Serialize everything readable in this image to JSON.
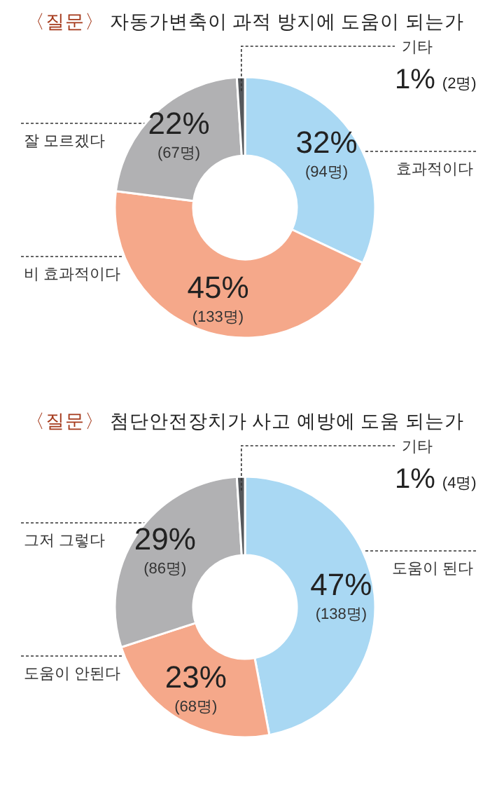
{
  "chart_data": [
    {
      "type": "donut",
      "title": "〈질문〉 자동가변축이 과적 방지에 도움이 되는가",
      "categories": [
        "효과적이다",
        "비 효과적이다",
        "잘 모르겠다",
        "기타"
      ],
      "values": [
        32,
        45,
        22,
        1
      ],
      "value_labels": [
        "32% (94명)",
        "45% (133명)",
        "22% (67명)",
        "1% (2명)"
      ],
      "colors": [
        "#a9d8f3",
        "#f5a88a",
        "#b1b1b3",
        "#55585c"
      ]
    },
    {
      "type": "donut",
      "title": "〈질문〉 첨단안전장치가 사고 예방에 도움 되는가",
      "categories": [
        "도움이 된다",
        "도움이 안된다",
        "그저 그렇다",
        "기타"
      ],
      "values": [
        47,
        23,
        29,
        1
      ],
      "value_labels": [
        "47% (138명)",
        "23% (68명)",
        "29% (86명)",
        "1% (4명)"
      ],
      "colors": [
        "#a9d8f3",
        "#f5a88a",
        "#b1b1b3",
        "#55585c"
      ]
    }
  ]
}
